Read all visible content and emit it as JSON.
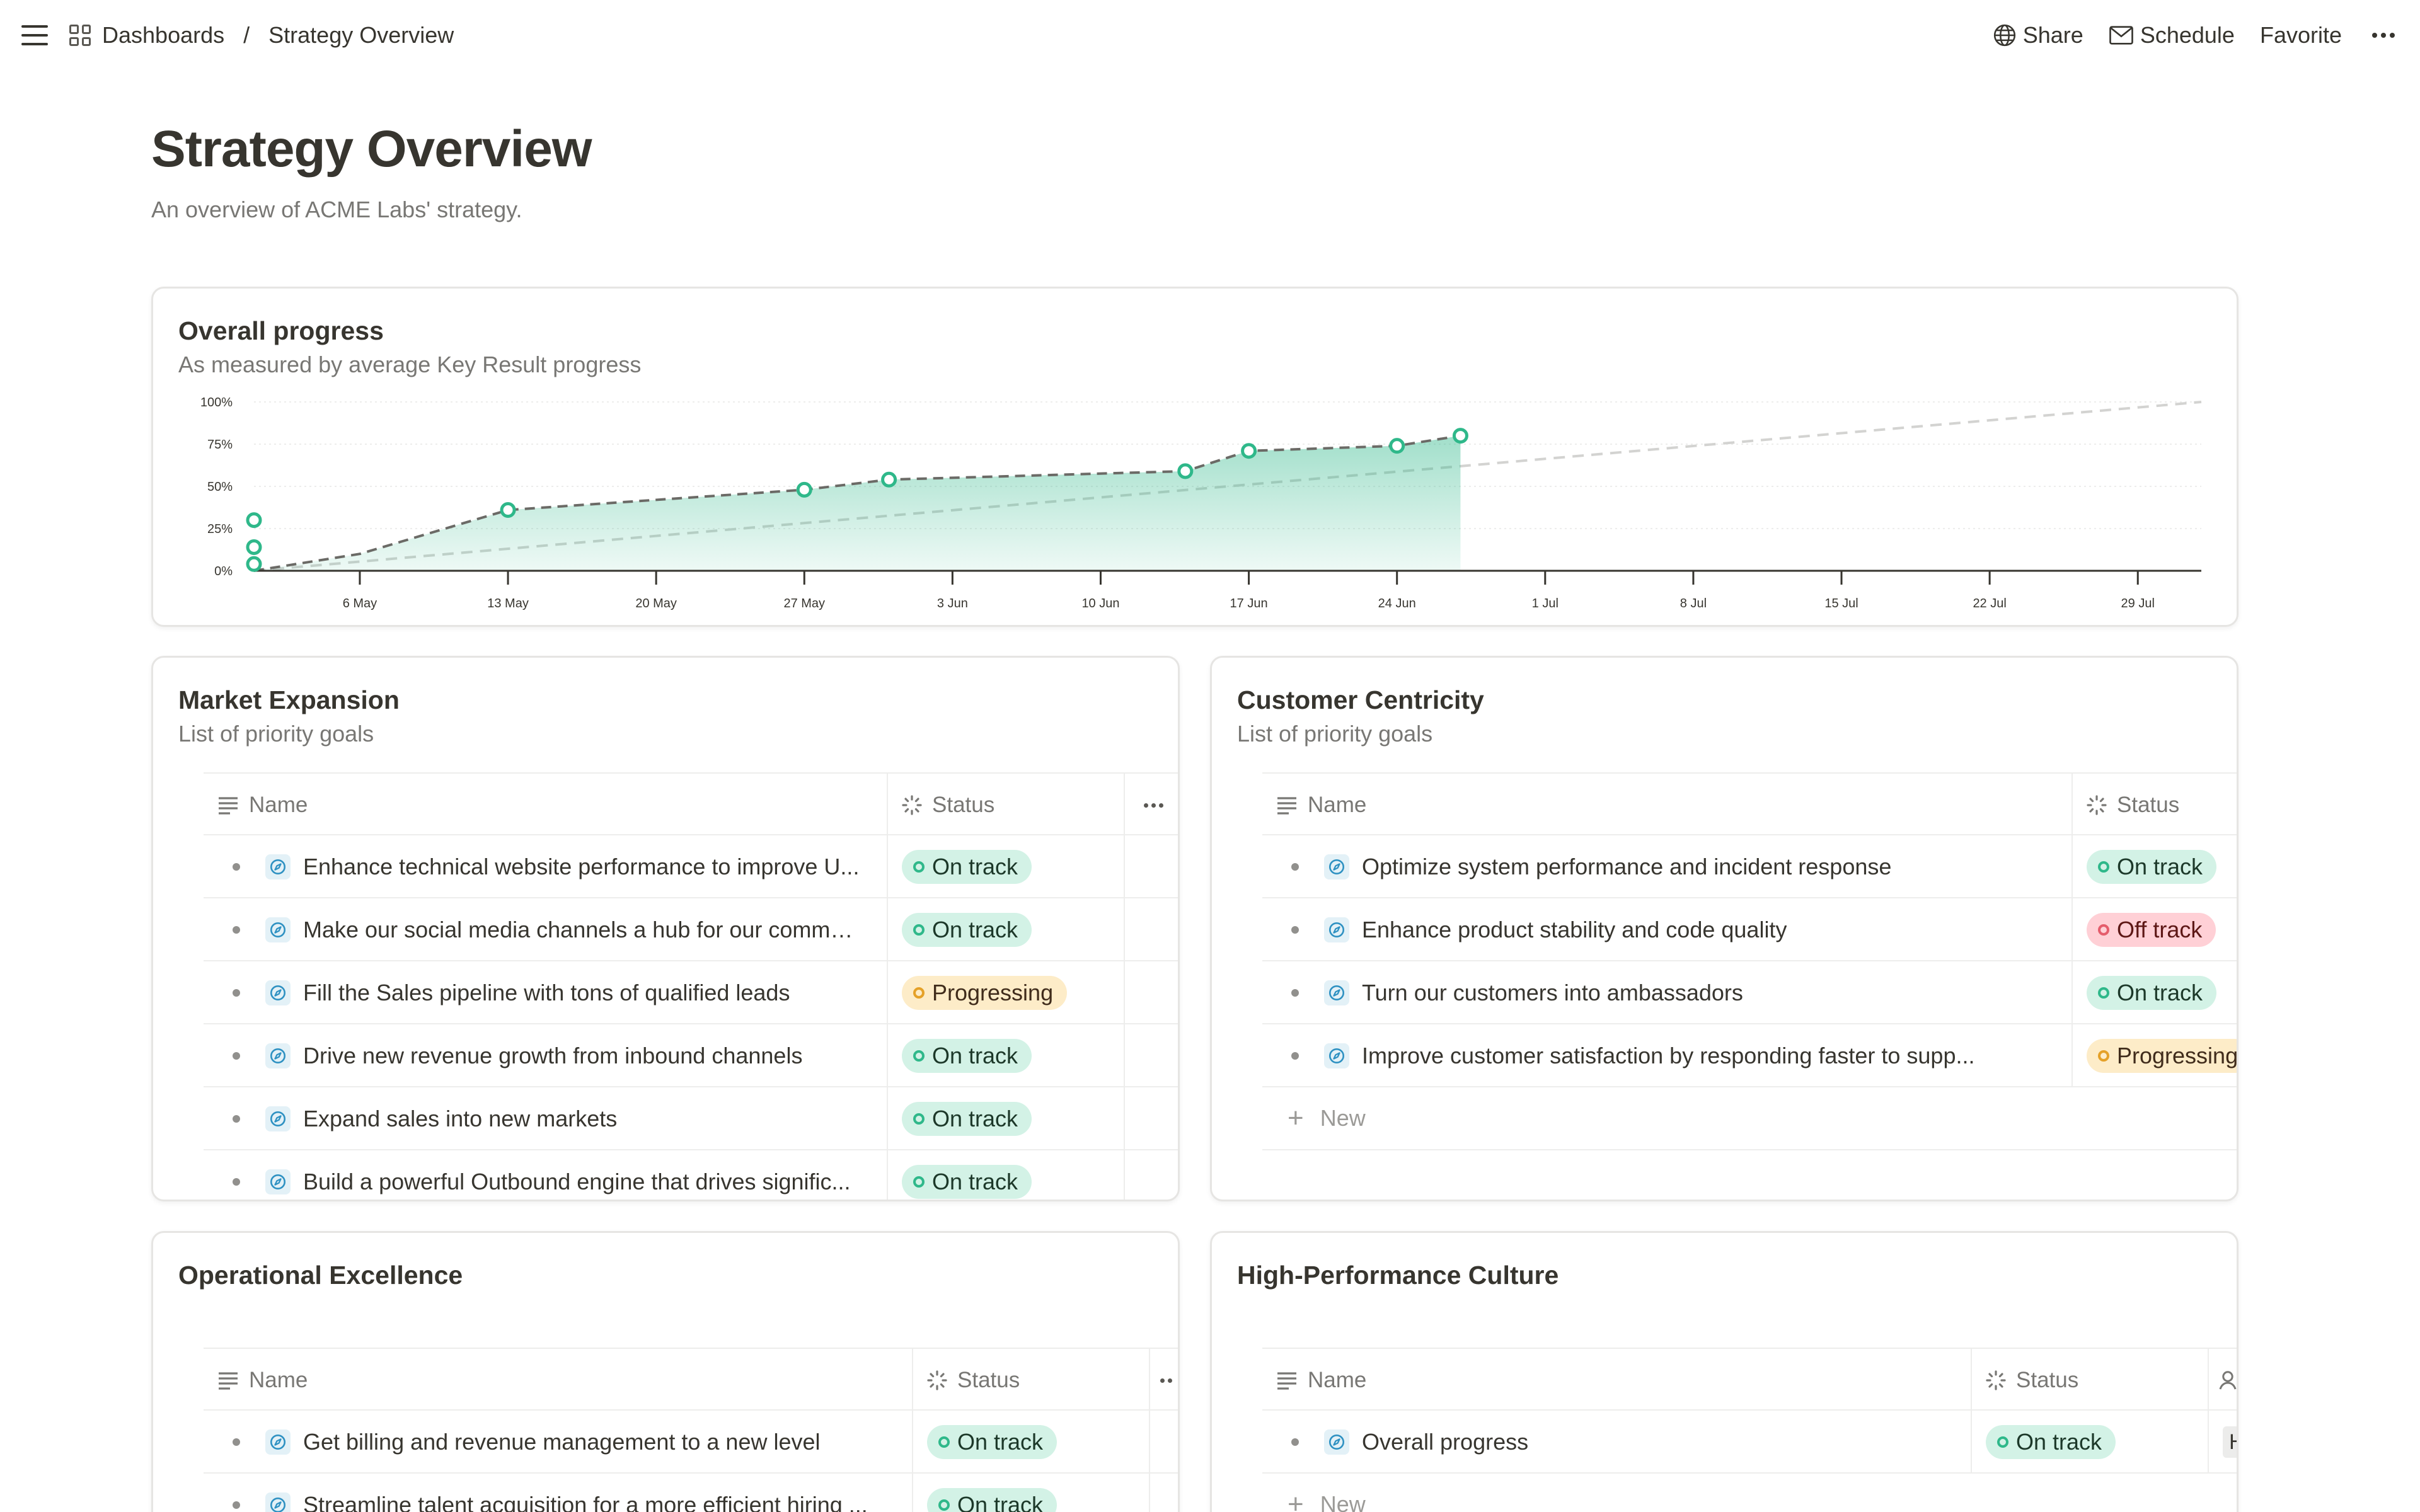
{
  "breadcrumb": {
    "root": "Dashboards",
    "separator": "/",
    "current": "Strategy Overview"
  },
  "actions": {
    "share": "Share",
    "schedule": "Schedule",
    "favorite": "Favorite"
  },
  "page": {
    "title": "Strategy Overview",
    "subtitle": "An overview of ACME Labs' strategy."
  },
  "progress_card": {
    "title": "Overall progress",
    "subtitle": "As measured by average Key Result progress"
  },
  "chart_data": {
    "type": "area",
    "title": "Overall progress",
    "subtitle": "As measured by average Key Result progress",
    "x_ticks": [
      "6 May",
      "13 May",
      "20 May",
      "27 May",
      "3 Jun",
      "10 Jun",
      "17 Jun",
      "24 Jun",
      "1 Jul",
      "8 Jul",
      "15 Jul",
      "22 Jul",
      "29 Jul"
    ],
    "y_ticks": [
      "0%",
      "25%",
      "50%",
      "75%",
      "100%"
    ],
    "ylim": [
      0,
      100
    ],
    "xlim": [
      "2024-05-01",
      "2024-08-01"
    ],
    "series": [
      {
        "style": "actual",
        "color": "#2fb88a",
        "points": [
          {
            "x": "2024-05-01",
            "y": 0
          },
          {
            "x": "2024-05-06",
            "y": 10
          },
          {
            "x": "2024-05-13",
            "y": 36
          },
          {
            "x": "2024-05-20",
            "y": 42
          },
          {
            "x": "2024-05-27",
            "y": 48
          },
          {
            "x": "2024-05-31",
            "y": 54
          },
          {
            "x": "2024-06-14",
            "y": 59
          },
          {
            "x": "2024-06-17",
            "y": 71
          },
          {
            "x": "2024-06-24",
            "y": 74
          },
          {
            "x": "2024-06-27",
            "y": 80
          }
        ],
        "markers": [
          {
            "x": "2024-05-01",
            "y": 30
          },
          {
            "x": "2024-05-01",
            "y": 14
          },
          {
            "x": "2024-05-01",
            "y": 4
          },
          {
            "x": "2024-05-13",
            "y": 36
          },
          {
            "x": "2024-05-27",
            "y": 48
          },
          {
            "x": "2024-05-31",
            "y": 54
          },
          {
            "x": "2024-06-14",
            "y": 59
          },
          {
            "x": "2024-06-17",
            "y": 71
          },
          {
            "x": "2024-06-24",
            "y": 74
          },
          {
            "x": "2024-06-27",
            "y": 80
          }
        ]
      },
      {
        "style": "target",
        "color": "#d3d3d1",
        "points": [
          {
            "x": "2024-05-01",
            "y": 0
          },
          {
            "x": "2024-08-01",
            "y": 100
          }
        ]
      }
    ],
    "grid": true
  },
  "market": {
    "title": "Market Expansion",
    "subtitle": "List of priority goals",
    "col_name": "Name",
    "col_status": "Status",
    "rows": [
      {
        "name": "Enhance technical website performance to improve U...",
        "status": "On track"
      },
      {
        "name": "Make our social media channels a hub for our commu...",
        "status": "On track"
      },
      {
        "name": "Fill the Sales pipeline with tons of qualified leads",
        "status": "Progressing"
      },
      {
        "name": "Drive new revenue growth from inbound channels",
        "status": "On track"
      },
      {
        "name": "Expand sales into new markets",
        "status": "On track"
      },
      {
        "name": "Build a powerful Outbound engine that drives signific...",
        "status": "On track"
      }
    ]
  },
  "customer": {
    "title": "Customer Centricity",
    "subtitle": "List of priority goals",
    "col_name": "Name",
    "col_status": "Status",
    "new_label": "New",
    "rows": [
      {
        "name": "Optimize system performance and incident response",
        "status": "On track"
      },
      {
        "name": "Enhance product stability and code quality",
        "status": "Off track"
      },
      {
        "name": "Turn our customers into ambassadors",
        "status": "On track"
      },
      {
        "name": "Improve customer satisfaction by responding faster to supp...",
        "status": "Progressing"
      }
    ]
  },
  "operational": {
    "title": "Operational Excellence",
    "col_name": "Name",
    "col_status": "Status",
    "rows": [
      {
        "name": "Get billing and revenue management to a new level",
        "status": "On track"
      },
      {
        "name": "Streamline talent acquisition for a more efficient hiring ...",
        "status": "On track"
      }
    ]
  },
  "culture": {
    "title": "High-Performance Culture",
    "col_name": "Name",
    "col_status": "Status",
    "new_label": "New",
    "rows": [
      {
        "name": "Overall progress",
        "status": "On track",
        "owner": "H"
      }
    ]
  },
  "colors": {
    "accent": "#2fb88a",
    "on_track_bg": "#d3f2e6",
    "progressing_bg": "#fdecc8",
    "off_track_bg": "#ffd0d6"
  }
}
